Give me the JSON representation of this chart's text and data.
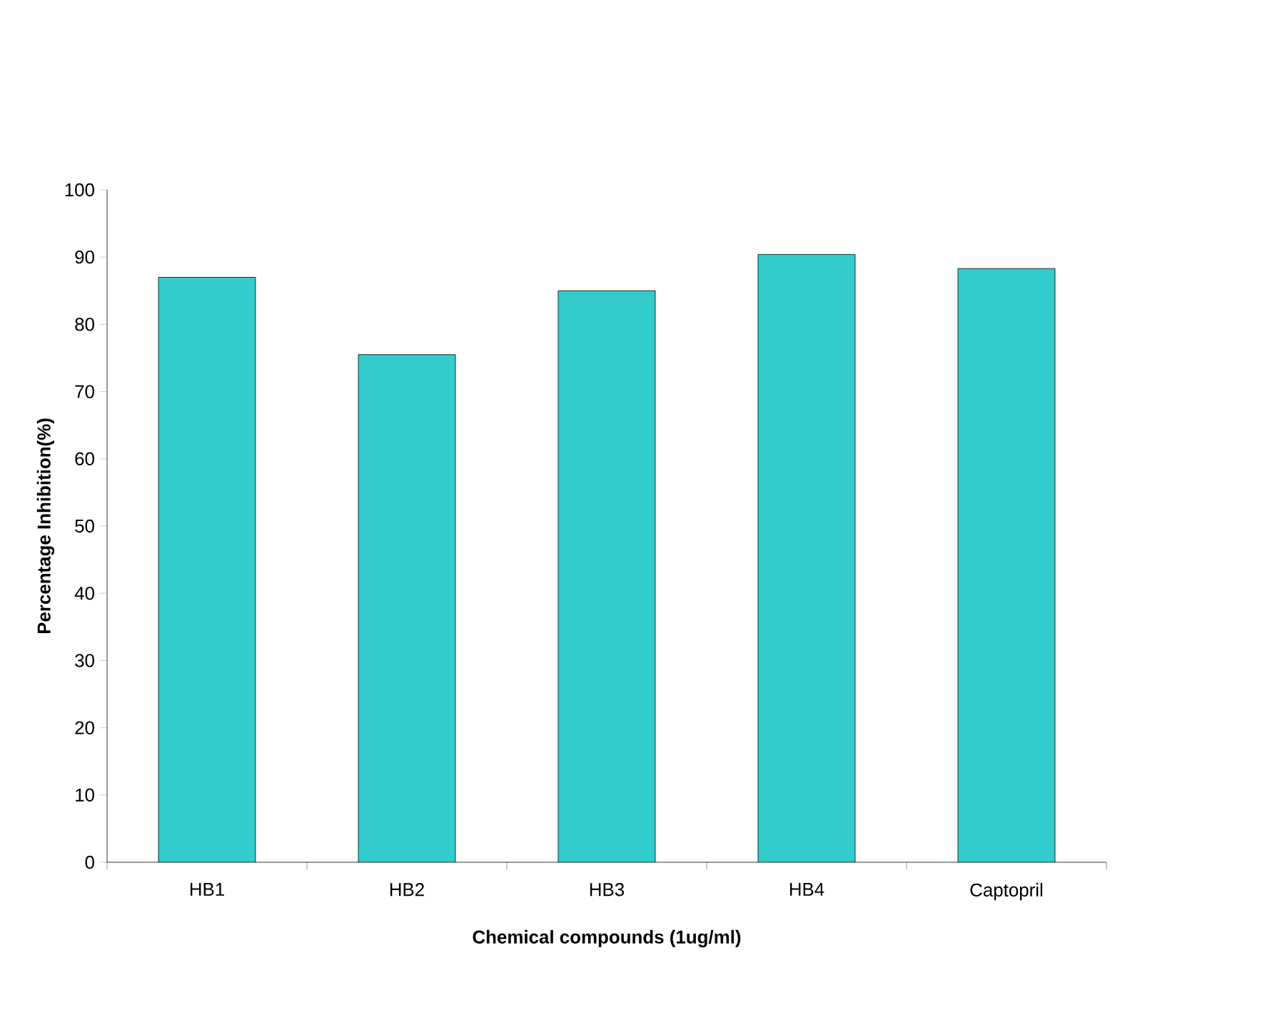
{
  "chart_data": {
    "type": "bar",
    "xlabel": "Chemical compounds (1ug/ml)",
    "ylabel": "Percentage Inhibition(%)",
    "categories": [
      "HB1",
      "HB2",
      "HB3",
      "HB4",
      "Captopril"
    ],
    "values": [
      87,
      75.5,
      85,
      90.4,
      88.3
    ],
    "color": "#33cccc",
    "ylim": [
      0,
      100
    ],
    "yticks": [
      0,
      10,
      20,
      30,
      40,
      50,
      60,
      70,
      80,
      90,
      100
    ]
  }
}
